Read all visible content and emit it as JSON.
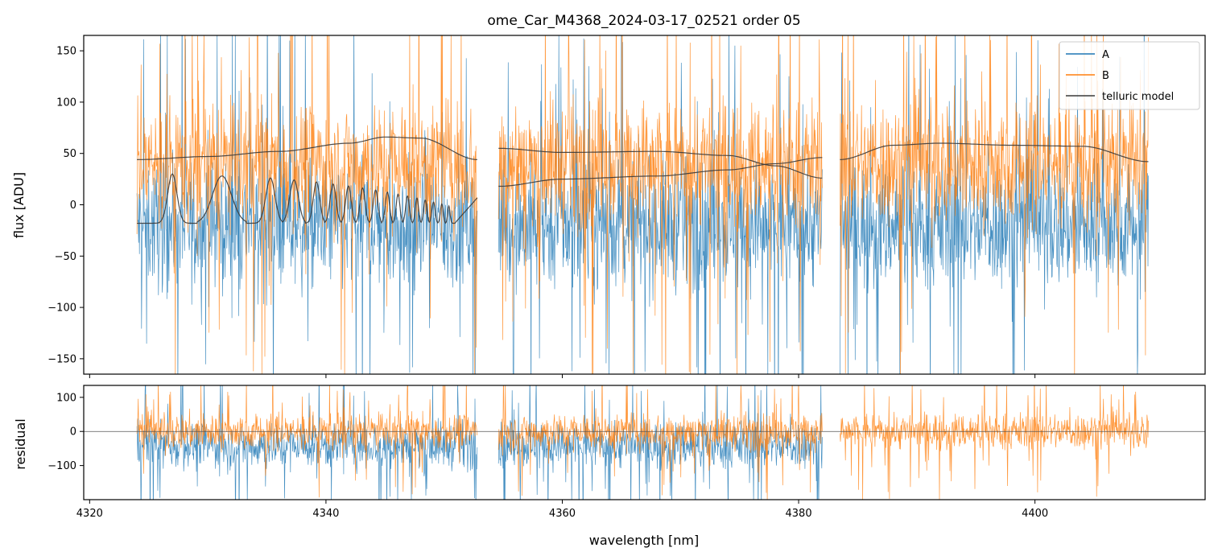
{
  "chart_data": [
    {
      "panel": "main",
      "type": "line",
      "title": "ome_Car_M4368_2024-03-17_02521  order 05",
      "xlabel": "",
      "ylabel": "flux [ADU]",
      "xlim": [
        4319.5,
        4414.4
      ],
      "ylim": [
        -165,
        165
      ],
      "yticks": [
        -150,
        -100,
        -50,
        0,
        50,
        100,
        150
      ],
      "ytick_labels": [
        "−150",
        "−100",
        "−50",
        "0",
        "50",
        "100",
        "150"
      ],
      "xticks": [
        4320,
        4340,
        4360,
        4380,
        4400
      ],
      "grid": false,
      "legend": "top-right",
      "segments": [
        [
          4324.0,
          4352.8
        ],
        [
          4354.6,
          4382.0
        ],
        [
          4383.5,
          4409.6
        ]
      ],
      "series": [
        {
          "name": "A",
          "color": "#1f77b4",
          "kind": "noisy-spectrum",
          "center": -20,
          "spread": 80,
          "segments_present": [
            0,
            1,
            2
          ]
        },
        {
          "name": "B",
          "color": "#ff7f0e",
          "kind": "noisy-spectrum",
          "center": 40,
          "spread": 80,
          "segments_present": [
            0,
            1,
            2
          ]
        },
        {
          "name": "telluric model",
          "color": "#3a3a3a",
          "kind": "model",
          "upper_curve": {
            "x": [
              4324,
              4330,
              4336,
              4342,
              4345,
              4348,
              4352.8,
              4354.6,
              4360,
              4368,
              4374,
              4378,
              4382,
              4383.5,
              4388,
              4392,
              4398,
              4404,
              4409.6
            ],
            "y": [
              44,
              47,
              52,
              60,
              66,
              65,
              44,
              55,
              51,
              52,
              48,
              38,
              26,
              44,
              58,
              60,
              58,
              57,
              42
            ]
          },
          "lower_curve": {
            "x": [
              4354.6,
              4360,
              4368,
              4374,
              4378,
              4382
            ],
            "y": [
              18,
              25,
              28,
              34,
              40,
              46
            ]
          },
          "absorption_lines": {
            "x_start": 4324.0,
            "x_end": 4352.8,
            "peaks_x": [
              4327.0,
              4331.2,
              4335.3,
              4337.3,
              4339.2,
              4340.6,
              4341.9,
              4343.1,
              4344.2,
              4345.2,
              4346.1,
              4346.9,
              4347.7,
              4348.4,
              4349.1,
              4349.8,
              4350.4
            ],
            "peak_y": 30,
            "trough_y": -18
          }
        }
      ]
    },
    {
      "panel": "residual",
      "type": "line",
      "title": "",
      "xlabel": "wavelength [nm]",
      "ylabel": "residual",
      "xlim": [
        4319.5,
        4414.4
      ],
      "ylim": [
        -200,
        135
      ],
      "yticks": [
        -100,
        0,
        100
      ],
      "ytick_labels": [
        "−100",
        "0",
        "100"
      ],
      "xticks": [
        4320,
        4340,
        4360,
        4380,
        4400
      ],
      "xtick_labels": [
        "4320",
        "4340",
        "4360",
        "4380",
        "4400"
      ],
      "grid": false,
      "zero_line": true,
      "series": [
        {
          "name": "A",
          "color": "#1f77b4",
          "center": -40,
          "spread": 90,
          "segments_present": [
            0,
            1
          ]
        },
        {
          "name": "B",
          "color": "#ff7f0e",
          "center": 0,
          "spread": 70,
          "segments_present": [
            0,
            1,
            2
          ]
        }
      ]
    }
  ]
}
